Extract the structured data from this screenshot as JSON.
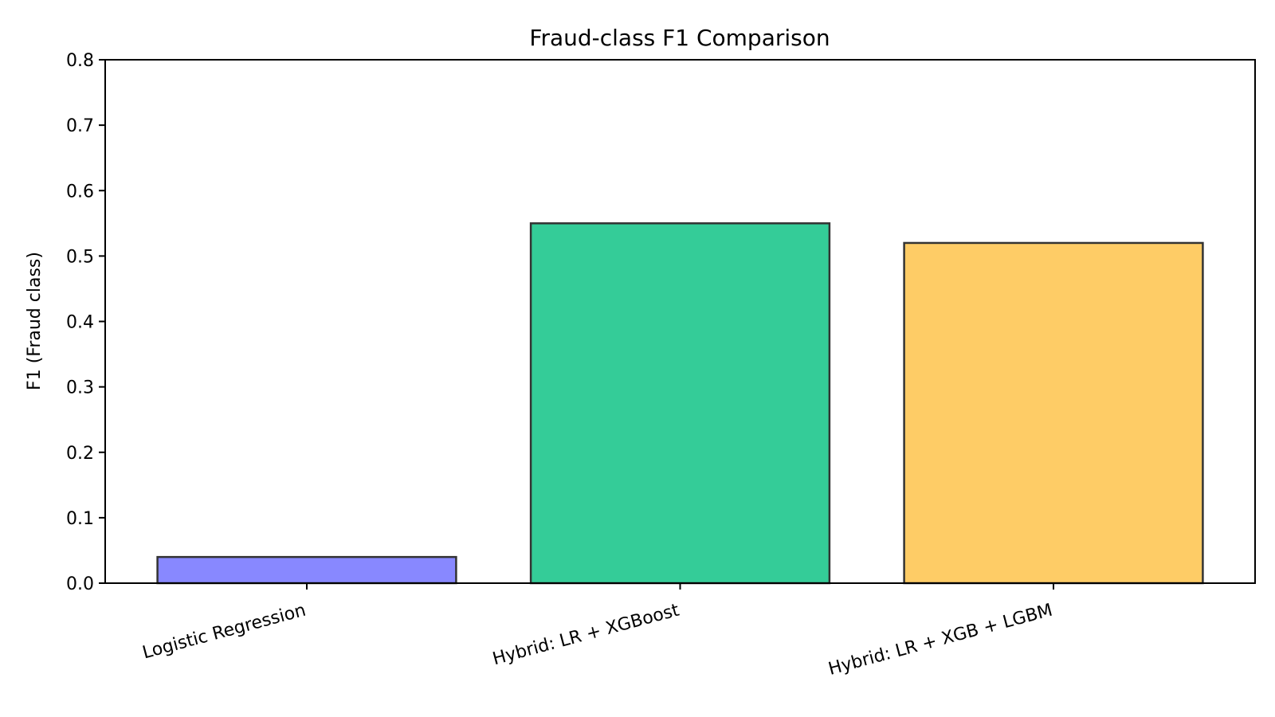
{
  "chart_data": {
    "type": "bar",
    "title": "Fraud-class F1 Comparison",
    "xlabel": "",
    "ylabel": "F1 (Fraud class)",
    "categories": [
      "Logistic Regression",
      "Hybrid: LR + XGBoost",
      "Hybrid: LR + XGB + LGBM"
    ],
    "values": [
      0.04,
      0.55,
      0.52
    ],
    "colors": [
      "#8888ff",
      "#34cc98",
      "#fecc66"
    ],
    "edge_color": "#333333",
    "ylim": [
      0,
      0.8
    ],
    "yticks": [
      0.0,
      0.1,
      0.2,
      0.3,
      0.4,
      0.5,
      0.6,
      0.7,
      0.8
    ],
    "ytick_labels": [
      "0.0",
      "0.1",
      "0.2",
      "0.3",
      "0.4",
      "0.5",
      "0.6",
      "0.7",
      "0.8"
    ],
    "grid": false,
    "legend": "none"
  }
}
